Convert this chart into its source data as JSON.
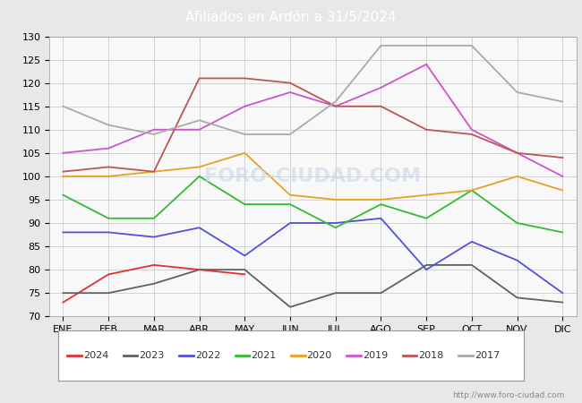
{
  "title": "Afiliados en Ardón a 31/5/2024",
  "title_bg_color": "#4a90d9",
  "title_text_color": "#ffffff",
  "ylim": [
    70,
    130
  ],
  "yticks": [
    70,
    75,
    80,
    85,
    90,
    95,
    100,
    105,
    110,
    115,
    120,
    125,
    130
  ],
  "months": [
    "ENE",
    "FEB",
    "MAR",
    "ABR",
    "MAY",
    "JUN",
    "JUL",
    "AGO",
    "SEP",
    "OCT",
    "NOV",
    "DIC"
  ],
  "url": "http://www.foro-ciudad.com",
  "series": {
    "2024": {
      "color": "#e03030",
      "values": [
        73,
        79,
        81,
        80,
        79,
        null,
        null,
        null,
        null,
        null,
        null,
        null
      ]
    },
    "2023": {
      "color": "#606060",
      "values": [
        75,
        75,
        77,
        80,
        80,
        72,
        75,
        75,
        81,
        81,
        74,
        73
      ]
    },
    "2022": {
      "color": "#5050dd",
      "values": [
        88,
        88,
        87,
        89,
        83,
        90,
        90,
        91,
        80,
        86,
        82,
        75
      ]
    },
    "2021": {
      "color": "#30bb30",
      "values": [
        96,
        91,
        91,
        100,
        94,
        94,
        89,
        94,
        91,
        97,
        90,
        88
      ]
    },
    "2020": {
      "color": "#e8a020",
      "values": [
        100,
        100,
        101,
        102,
        105,
        96,
        95,
        95,
        96,
        97,
        100,
        97
      ]
    },
    "2019": {
      "color": "#cc55cc",
      "values": [
        105,
        106,
        110,
        110,
        115,
        118,
        115,
        119,
        124,
        110,
        105,
        100
      ]
    },
    "2018": {
      "color": "#bb5555",
      "values": [
        101,
        102,
        101,
        121,
        121,
        120,
        115,
        115,
        110,
        109,
        105,
        104
      ]
    },
    "2017": {
      "color": "#aaaaaa",
      "values": [
        115,
        111,
        109,
        112,
        109,
        109,
        116,
        128,
        128,
        128,
        118,
        116
      ]
    }
  },
  "legend_order": [
    "2024",
    "2023",
    "2022",
    "2021",
    "2020",
    "2019",
    "2018",
    "2017"
  ],
  "background_color": "#e8e8e8",
  "plot_bg_color": "#f8f8f8",
  "grid_color": "#cccccc"
}
